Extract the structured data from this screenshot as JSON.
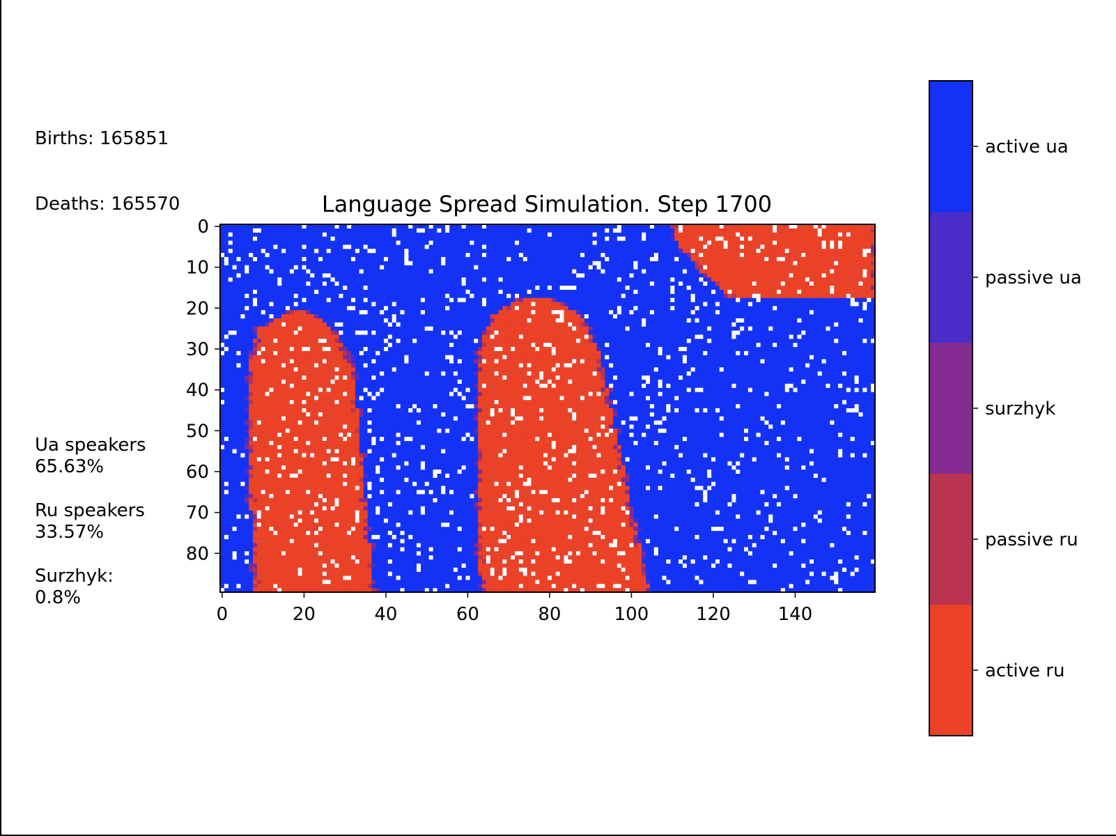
{
  "stats": {
    "births_label": "Births: 165851",
    "deaths_label": "Deaths: 165570",
    "ua_label": "Ua speakers",
    "ua_value": "65.63%",
    "ru_label": "Ru speakers",
    "ru_value": "33.57%",
    "surzhyk_label": "Surzhyk:",
    "surzhyk_value": "0.8%"
  },
  "chart_data": {
    "type": "heatmap",
    "title": "Language Spread Simulation. Step 1700",
    "xlabel": "",
    "ylabel": "",
    "grid_cols": 160,
    "grid_rows": 90,
    "xlim": [
      0,
      160
    ],
    "ylim": [
      90,
      0
    ],
    "x_ticks": [
      0,
      20,
      40,
      60,
      80,
      100,
      120,
      140
    ],
    "y_ticks": [
      0,
      10,
      20,
      30,
      40,
      50,
      60,
      70,
      80
    ],
    "categories": [
      "active ua",
      "passive ua",
      "surzhyk",
      "passive ru",
      "active ru"
    ],
    "colors": {
      "active ua": "#1432f5",
      "passive ua": "#4a2dc8",
      "surzhyk": "#832b91",
      "passive ru": "#ba3350",
      "active ru": "#ec4226",
      "empty": "#ffffff"
    },
    "shares": {
      "ua": 65.63,
      "ru": 33.57,
      "surzhyk": 0.8
    },
    "ru_regions": [
      {
        "name": "left band",
        "rows": [
          21,
          90
        ],
        "cols": [
          6,
          37
        ]
      },
      {
        "name": "middle band",
        "rows": [
          18,
          90
        ],
        "cols": [
          62,
          105
        ]
      },
      {
        "name": "top-right blob",
        "rows": [
          0,
          18
        ],
        "cols": [
          110,
          160
        ]
      }
    ]
  }
}
